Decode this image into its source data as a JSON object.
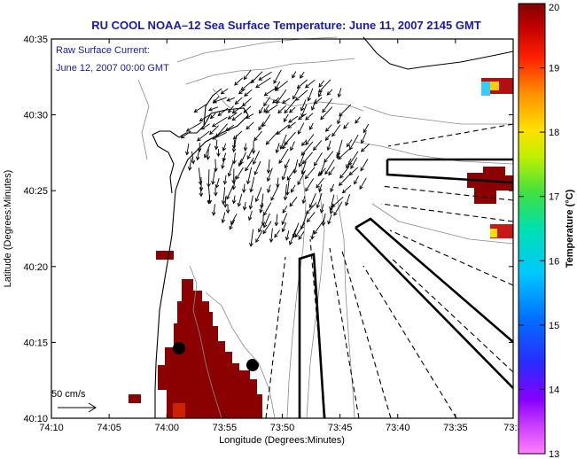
{
  "title": "RU COOL   NOAA–12  Sea Surface Temperature:  June 11, 2007 2145 GMT",
  "current": {
    "label": "Raw Surface Current:",
    "time": "June 12, 2007 00:00 GMT",
    "scale_label": "50 cm/s"
  },
  "axes": {
    "xlabel": "Longitude (Degrees:Minutes)",
    "ylabel": "Latitude (Degrees:Minutes)",
    "xticks": [
      "74:10",
      "74:05",
      "74:00",
      "73:55",
      "73:50",
      "73:45",
      "73:40",
      "73:35",
      "73:3"
    ],
    "yticks": [
      "40:35",
      "40:30",
      "40:25",
      "40:20",
      "40:15",
      "40:10"
    ]
  },
  "colorbar": {
    "label": "Temperature (°C)",
    "ticks": [
      "20",
      "19",
      "18",
      "17",
      "16",
      "15",
      "14",
      "13"
    ],
    "min": 13,
    "max": 20
  },
  "colors": {
    "title": "#1a1aa8",
    "sst_warm": "#8b0000",
    "land_outline": "#000000"
  }
}
